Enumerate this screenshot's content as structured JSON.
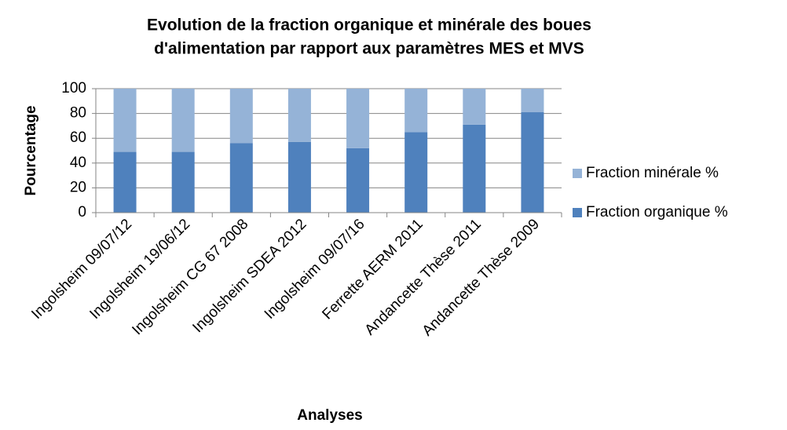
{
  "chart_data": {
    "type": "stacked_bar",
    "title": [
      "Evolution de la fraction organique et minérale des boues",
      "d'alimentation par rapport aux paramètres MES et MVS"
    ],
    "x_label": "Analyses",
    "y_label": "Pourcentage",
    "categories": [
      "Ingolsheim 09/07/12",
      "Ingolsheim 19/06/12",
      "Ingolsheim CG 67 2008",
      "Ingolsheim SDEA 2012",
      "Ingolsheim 09/07/16",
      "Ferrette AERM 2011",
      "Andancette Thèse 2011",
      "Andancette Thèse 2009"
    ],
    "series": [
      {
        "name": "Fraction organique %",
        "color": "#4f81bd",
        "values": [
          49,
          49,
          56,
          57,
          52,
          65,
          71,
          81
        ]
      },
      {
        "name": "Fraction minérale %",
        "color": "#95b3d7",
        "values": [
          51,
          51,
          44,
          43,
          48,
          35,
          29,
          19
        ]
      }
    ],
    "ylim": [
      0,
      100
    ],
    "yticks": [
      0,
      20,
      40,
      60,
      80,
      100
    ],
    "grid": true,
    "legend": "right"
  }
}
